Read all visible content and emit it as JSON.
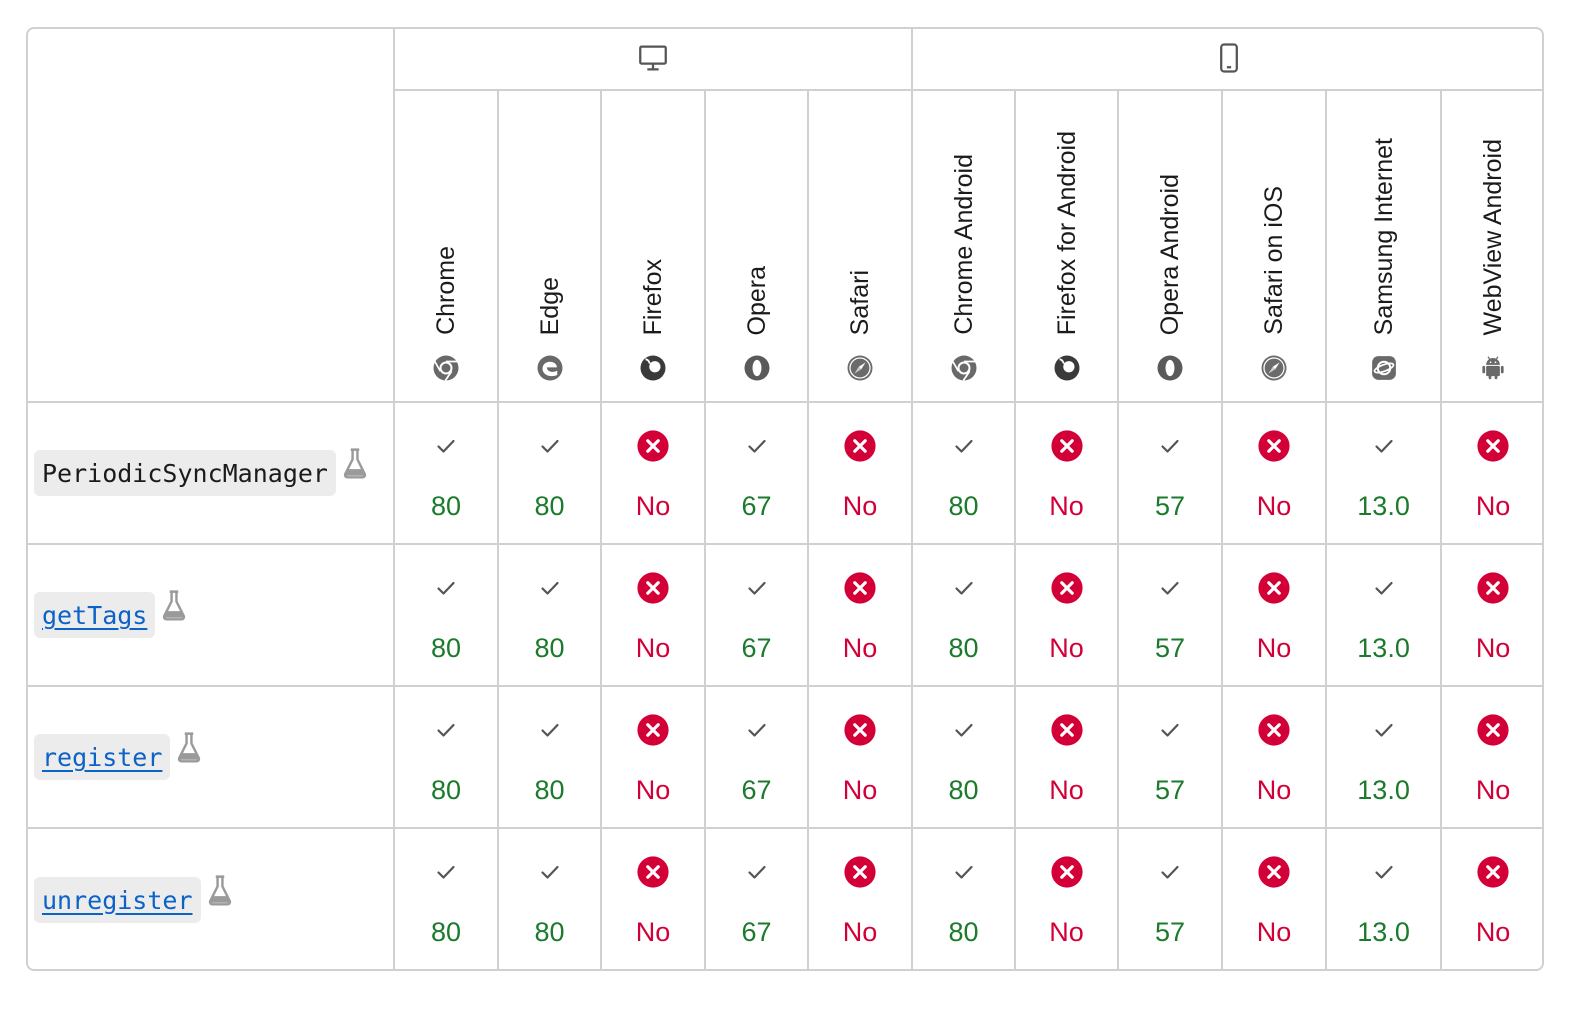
{
  "groups": [
    {
      "icon": "desktop-icon",
      "span": 5
    },
    {
      "icon": "mobile-icon",
      "span": 6
    }
  ],
  "browsers": [
    {
      "name": "Chrome",
      "icon": "chrome-icon"
    },
    {
      "name": "Edge",
      "icon": "edge-icon"
    },
    {
      "name": "Firefox",
      "icon": "firefox-icon"
    },
    {
      "name": "Opera",
      "icon": "opera-icon"
    },
    {
      "name": "Safari",
      "icon": "safari-icon"
    },
    {
      "name": "Chrome Android",
      "icon": "chrome-icon"
    },
    {
      "name": "Firefox for Android",
      "icon": "firefox-icon"
    },
    {
      "name": "Opera Android",
      "icon": "opera-icon"
    },
    {
      "name": "Safari on iOS",
      "icon": "safari-icon"
    },
    {
      "name": "Samsung Internet",
      "icon": "samsung-internet-icon"
    },
    {
      "name": "WebView Android",
      "icon": "android-icon"
    }
  ],
  "rows": [
    {
      "feature": "PeriodicSyncManager",
      "link": false,
      "support": [
        "80",
        "80",
        "No",
        "67",
        "No",
        "80",
        "No",
        "57",
        "No",
        "13.0",
        "No"
      ]
    },
    {
      "feature": "getTags",
      "link": true,
      "support": [
        "80",
        "80",
        "No",
        "67",
        "No",
        "80",
        "No",
        "57",
        "No",
        "13.0",
        "No"
      ]
    },
    {
      "feature": "register",
      "link": true,
      "support": [
        "80",
        "80",
        "No",
        "67",
        "No",
        "80",
        "No",
        "57",
        "No",
        "13.0",
        "No"
      ]
    },
    {
      "feature": "unregister",
      "link": true,
      "support": [
        "80",
        "80",
        "No",
        "67",
        "No",
        "80",
        "No",
        "57",
        "No",
        "13.0",
        "No"
      ]
    }
  ],
  "colors": {
    "supported": "#1b7a2c",
    "unsupported": "#d30038",
    "link": "#0b62c7",
    "border": "#d0d0d0"
  }
}
